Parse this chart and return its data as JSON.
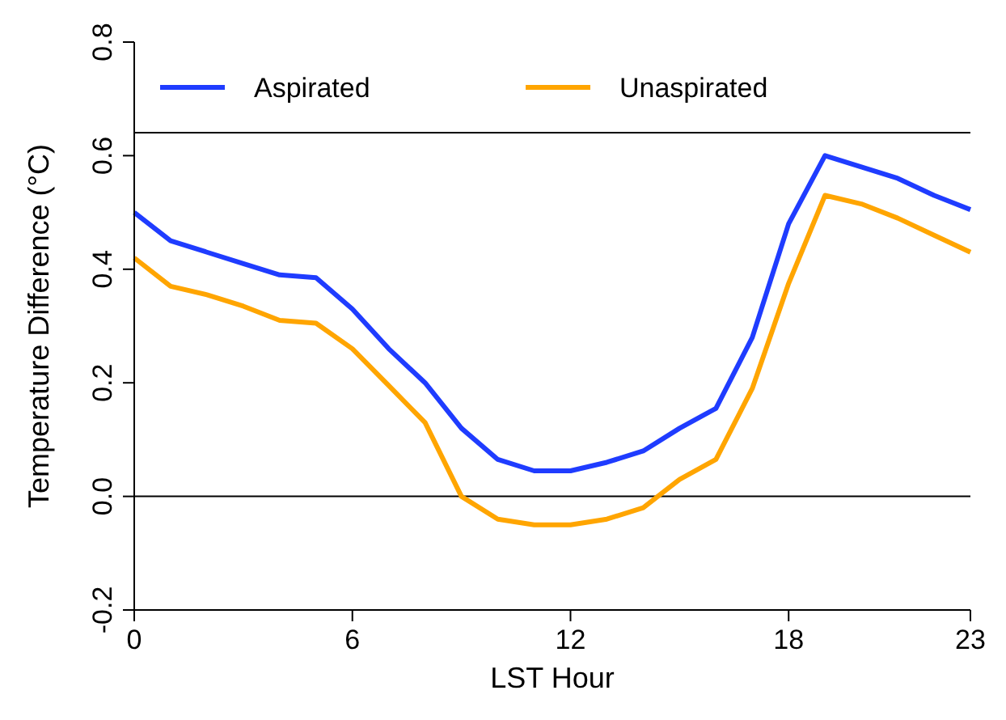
{
  "chart_data": {
    "type": "line",
    "xlabel": "LST Hour",
    "ylabel": "Temperature Difference (°C)",
    "x": [
      0,
      1,
      2,
      3,
      4,
      5,
      6,
      7,
      8,
      9,
      10,
      11,
      12,
      13,
      14,
      15,
      16,
      17,
      18,
      19,
      20,
      21,
      22,
      23
    ],
    "series": [
      {
        "name": "Aspirated",
        "color": "#1f3cff",
        "values": [
          0.5,
          0.45,
          0.43,
          0.41,
          0.39,
          0.385,
          0.33,
          0.26,
          0.2,
          0.12,
          0.065,
          0.045,
          0.045,
          0.06,
          0.08,
          0.12,
          0.155,
          0.28,
          0.48,
          0.6,
          0.58,
          0.56,
          0.53,
          0.505
        ]
      },
      {
        "name": "Unaspirated",
        "color": "#ffa500",
        "values": [
          0.42,
          0.37,
          0.355,
          0.335,
          0.31,
          0.305,
          0.26,
          0.195,
          0.13,
          0.0,
          -0.04,
          -0.05,
          -0.05,
          -0.04,
          -0.02,
          0.03,
          0.065,
          0.19,
          0.375,
          0.53,
          0.515,
          0.49,
          0.46,
          0.43
        ]
      }
    ],
    "xlim": [
      0,
      23
    ],
    "xticks": [
      0,
      6,
      12,
      18,
      23
    ],
    "ylim": [
      -0.2,
      0.8
    ],
    "yticks": [
      {
        "value": -0.2,
        "label": "-0.2"
      },
      {
        "value": 0,
        "label": "0.0"
      },
      {
        "value": 0.2,
        "label": "0.2"
      },
      {
        "value": 0.4,
        "label": "0.4"
      },
      {
        "value": 0.6,
        "label": "0.6"
      },
      {
        "value": 0.8,
        "label": "0.8"
      }
    ],
    "ref_lines": [
      {
        "axis": "y",
        "value": 0,
        "label": null,
        "color": "#000000"
      }
    ],
    "legend": "top",
    "grid": false,
    "marker": "none",
    "line_style": "solid"
  }
}
